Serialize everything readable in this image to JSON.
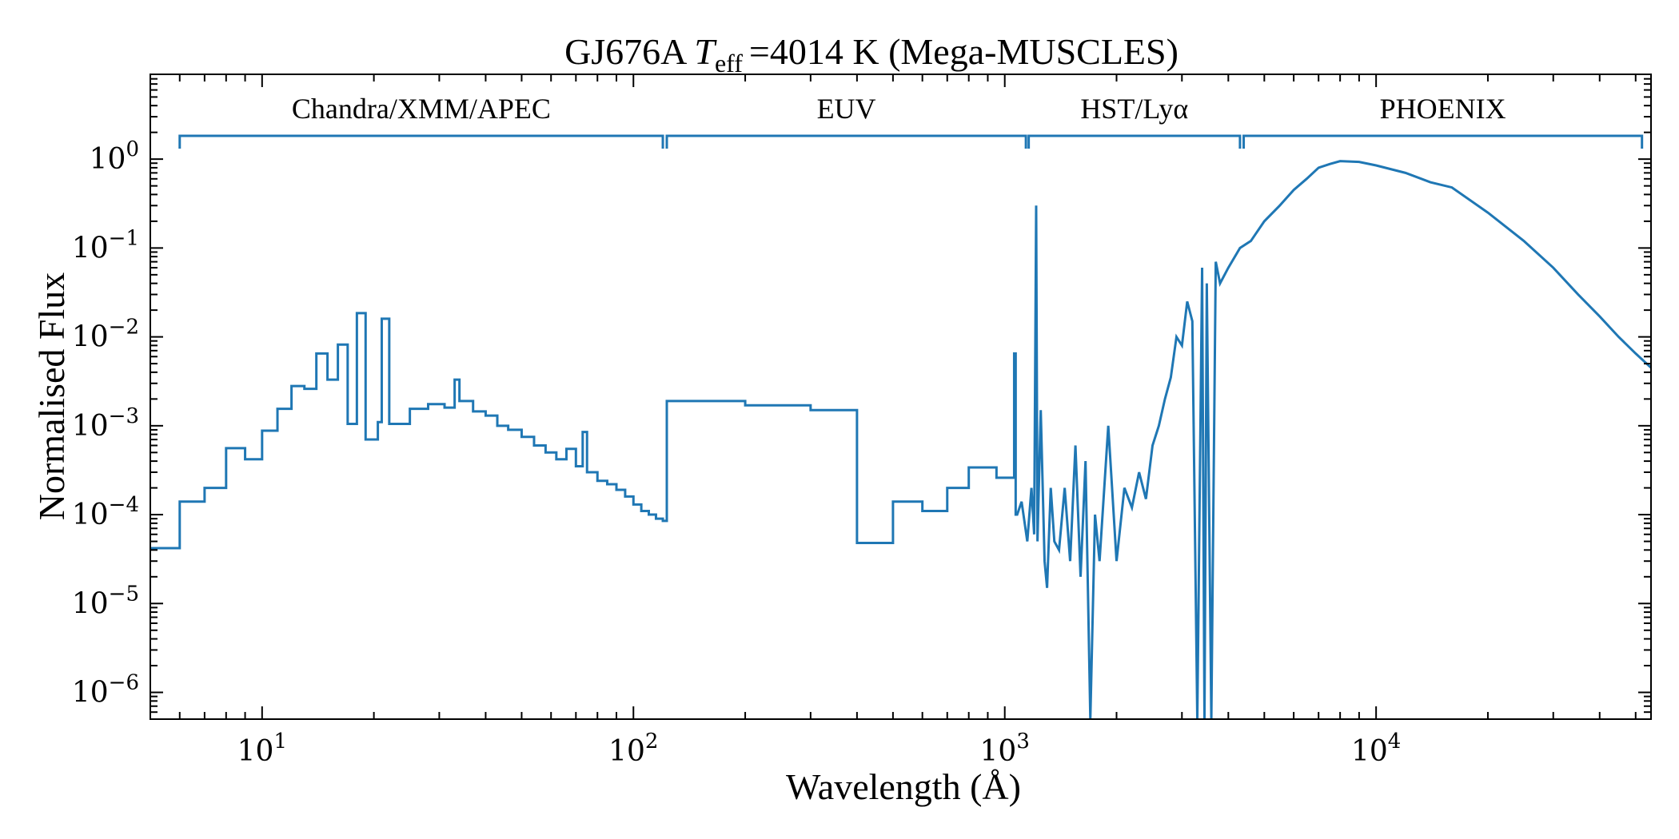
{
  "chart_data": {
    "type": "line",
    "title_parts": {
      "star": "GJ676A",
      "teff_symbol": "T",
      "teff_sub": "eff",
      "teff_value": "=4014 K",
      "source": "(Mega-MUSCLES)"
    },
    "title": "GJ676A T_eff =4014 K (Mega-MUSCLES)",
    "xlabel": "Wavelength (Å)",
    "ylabel": "Normalised Flux",
    "xscale": "log",
    "yscale": "log",
    "xlim": [
      5,
      55000
    ],
    "ylim": [
      5e-07,
      9
    ],
    "x_ticks": [
      {
        "value": 10,
        "base": "10",
        "exp": "1"
      },
      {
        "value": 100,
        "base": "10",
        "exp": "2"
      },
      {
        "value": 1000,
        "base": "10",
        "exp": "3"
      },
      {
        "value": 10000,
        "base": "10",
        "exp": "4"
      }
    ],
    "y_ticks": [
      {
        "value": 1,
        "base": "10",
        "exp": "0"
      },
      {
        "value": 0.1,
        "base": "10",
        "exp": "−1"
      },
      {
        "value": 0.01,
        "base": "10",
        "exp": "−2"
      },
      {
        "value": 0.001,
        "base": "10",
        "exp": "−3"
      },
      {
        "value": 0.0001,
        "base": "10",
        "exp": "−4"
      },
      {
        "value": 1e-05,
        "base": "10",
        "exp": "−5"
      },
      {
        "value": 1e-06,
        "base": "10",
        "exp": "−6"
      }
    ],
    "line_color": "#1f77b4",
    "regions": [
      {
        "label": "Chandra/XMM/APEC",
        "start": 6,
        "end": 120
      },
      {
        "label": "EUV",
        "start": 123,
        "end": 1140
      },
      {
        "label": "HST/Lyα",
        "start": 1160,
        "end": 4300
      },
      {
        "label": "PHOENIX",
        "start": 4400,
        "end": 52000
      }
    ],
    "series": [
      {
        "steps": [
          [
            5,
            4.2e-05
          ],
          [
            6,
            0.00014
          ],
          [
            7,
            0.0002
          ],
          [
            8,
            0.00056
          ],
          [
            9,
            0.00042
          ],
          [
            10,
            0.00088
          ],
          [
            11,
            0.00155
          ],
          [
            12,
            0.0028
          ],
          [
            13,
            0.0026
          ],
          [
            14,
            0.0065
          ],
          [
            15,
            0.0033
          ],
          [
            16,
            0.0082
          ],
          [
            17,
            0.00105
          ],
          [
            18,
            0.0185
          ],
          [
            19,
            0.0007
          ],
          [
            20.5,
            0.0011
          ],
          [
            21,
            0.016
          ],
          [
            22,
            0.00105
          ],
          [
            25,
            0.00155
          ],
          [
            28,
            0.00175
          ],
          [
            31,
            0.0016
          ],
          [
            33,
            0.0033
          ],
          [
            34,
            0.0019
          ],
          [
            37,
            0.00145
          ],
          [
            40,
            0.0013
          ],
          [
            43,
            0.001
          ],
          [
            46,
            0.0009
          ],
          [
            50,
            0.00075
          ],
          [
            54,
            0.0006
          ],
          [
            58,
            0.0005
          ],
          [
            62,
            0.00042
          ],
          [
            66,
            0.00055
          ],
          [
            70,
            0.00035
          ],
          [
            73,
            0.00085
          ],
          [
            75,
            0.0003
          ],
          [
            80,
            0.00024
          ],
          [
            85,
            0.00022
          ],
          [
            90,
            0.00019
          ],
          [
            95,
            0.00016
          ],
          [
            100,
            0.00013
          ],
          [
            105,
            0.00011
          ],
          [
            110,
            0.0001
          ],
          [
            115,
            9e-05
          ],
          [
            120,
            8.5e-05
          ],
          [
            123,
            0.0019
          ],
          [
            200,
            0.0017
          ],
          [
            300,
            0.0015
          ],
          [
            400,
            4.8e-05
          ],
          [
            500,
            0.00014
          ],
          [
            600,
            0.00011
          ],
          [
            700,
            0.0002
          ],
          [
            800,
            0.00034
          ],
          [
            950,
            0.00026
          ],
          [
            1060,
            0.0065
          ],
          [
            1070,
            0.0001
          ]
        ],
        "points": [
          [
            1080,
            0.0001
          ],
          [
            1110,
            0.00014
          ],
          [
            1150,
            5e-05
          ],
          [
            1180,
            0.0002
          ],
          [
            1200,
            6e-05
          ],
          [
            1215,
            0.3
          ],
          [
            1225,
            5e-05
          ],
          [
            1250,
            0.0015
          ],
          [
            1280,
            3e-05
          ],
          [
            1300,
            1.5e-05
          ],
          [
            1330,
            0.0002
          ],
          [
            1360,
            5e-05
          ],
          [
            1400,
            4e-05
          ],
          [
            1450,
            0.0002
          ],
          [
            1500,
            3e-05
          ],
          [
            1550,
            0.0006
          ],
          [
            1600,
            2e-05
          ],
          [
            1650,
            0.0004
          ],
          [
            1700,
            5e-07
          ],
          [
            1750,
            0.0001
          ],
          [
            1800,
            3e-05
          ],
          [
            1900,
            0.001
          ],
          [
            2000,
            3e-05
          ],
          [
            2100,
            0.0002
          ],
          [
            2200,
            0.00012
          ],
          [
            2300,
            0.0003
          ],
          [
            2400,
            0.00015
          ],
          [
            2500,
            0.0006
          ],
          [
            2600,
            0.001
          ],
          [
            2700,
            0.002
          ],
          [
            2800,
            0.0035
          ],
          [
            2900,
            0.01
          ],
          [
            3000,
            0.008
          ],
          [
            3100,
            0.025
          ],
          [
            3200,
            0.015
          ],
          [
            3300,
            5e-07
          ],
          [
            3400,
            0.06
          ],
          [
            3450,
            5e-07
          ],
          [
            3500,
            0.04
          ],
          [
            3600,
            5e-07
          ],
          [
            3700,
            0.07
          ],
          [
            3800,
            0.04
          ],
          [
            4000,
            0.06
          ],
          [
            4300,
            0.1
          ],
          [
            4600,
            0.12
          ],
          [
            5000,
            0.2
          ],
          [
            5500,
            0.3
          ],
          [
            6000,
            0.45
          ],
          [
            6500,
            0.6
          ],
          [
            7000,
            0.8
          ],
          [
            7500,
            0.88
          ],
          [
            8000,
            0.95
          ],
          [
            9000,
            0.93
          ],
          [
            10000,
            0.85
          ],
          [
            12000,
            0.7
          ],
          [
            14000,
            0.55
          ],
          [
            16000,
            0.48
          ],
          [
            20000,
            0.25
          ],
          [
            25000,
            0.12
          ],
          [
            30000,
            0.06
          ],
          [
            35000,
            0.03
          ],
          [
            40000,
            0.017
          ],
          [
            45000,
            0.01
          ],
          [
            50000,
            0.0065
          ],
          [
            55000,
            0.0045
          ]
        ]
      }
    ]
  }
}
